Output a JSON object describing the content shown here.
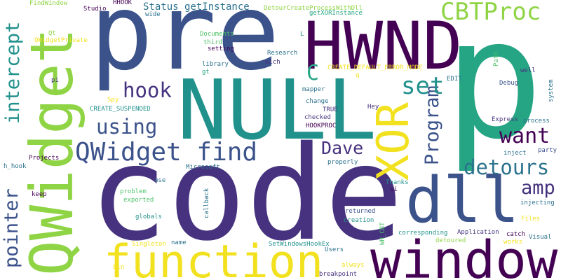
{
  "title": "Word cloud",
  "palette": {
    "yellow": "#f2e11e",
    "lime": "#8fd444",
    "green": "#4fc16b",
    "teal": "#21918c",
    "seagreen": "#25a584",
    "blue": "#3b528b",
    "indigo": "#46327e",
    "purple": "#440154",
    "steel": "#2c728e"
  },
  "words": {
    "pre": "pre",
    "p": "p",
    "code": "code",
    "null": "NULL",
    "qwidget": "QWidget",
    "hwnd": "HWND",
    "function": "function",
    "window": "window",
    "dll": "dll",
    "xor": "XOR",
    "cbtproc": "CBTProc",
    "qwidget_find": "QWidget find",
    "detours": "detours",
    "pointer": "pointer",
    "intercept": "intercept",
    "program": "Program",
    "dave": "Dave",
    "want": "want",
    "using": "using",
    "hook": "hook",
    "amp": "amp",
    "set": "set",
    "c": "C",
    "status_getinstance": "Status getInstance",
    "findwindow": "FindWindow",
    "studio": "Studio",
    "hhook": "HHOOK",
    "detourcreateprocesswithdll": "DetourCreateProcessWithDll",
    "getxorinstance": "getXORInstance",
    "wide": "wide",
    "qt": "Qt",
    "qwidgetprivate": "QWidgetPrivate",
    "documents": "Documents",
    "third": "third",
    "setting": "setting",
    "l": "L",
    "research": "Research",
    "wich": "wich",
    "library": "library",
    "gt": "gt",
    "create_default_error_mode": "CREATE_DEFAULT_ERROR_MODE",
    "q": "q",
    "pi": "pi",
    "mapper": "mapper",
    "edit": "EDIT",
    "debug": "Debug",
    "well": "well",
    "path": "Path",
    "system": "system",
    "spy": "Spy",
    "create_suspended": "CREATE_SUSPENDED",
    "change": "change",
    "true": "TRUE",
    "checked": "checked",
    "hey": "Hey",
    "hookproc": "HOOKPROC",
    "express": "Express",
    "process": "process",
    "inject": "inject",
    "party": "party",
    "projects": "Projects",
    "h_hook": "h_hook",
    "microsoft": "Microsoft",
    "properly": "properly",
    "keep": "keep",
    "use": "use",
    "thanks": "Thanks",
    "si": "si",
    "problem": "problem",
    "exported": "exported",
    "callback": "callback",
    "injecting": "injecting",
    "returned": "returned",
    "creation": "creation",
    "files": "Files",
    "globals": "globals",
    "wh_cbt": "WH_CBT",
    "corresponding": "corresponding",
    "application": "Application",
    "catch": "catch",
    "singleton": "Singleton",
    "name": "name",
    "setwindowshookex": "SetWindowsHookEx",
    "detoured": "detoured",
    "works": "works",
    "visual": "Visual",
    "users": "Users",
    "bin": "bin",
    "always": "always",
    "breakpoint": "breakpoint"
  }
}
